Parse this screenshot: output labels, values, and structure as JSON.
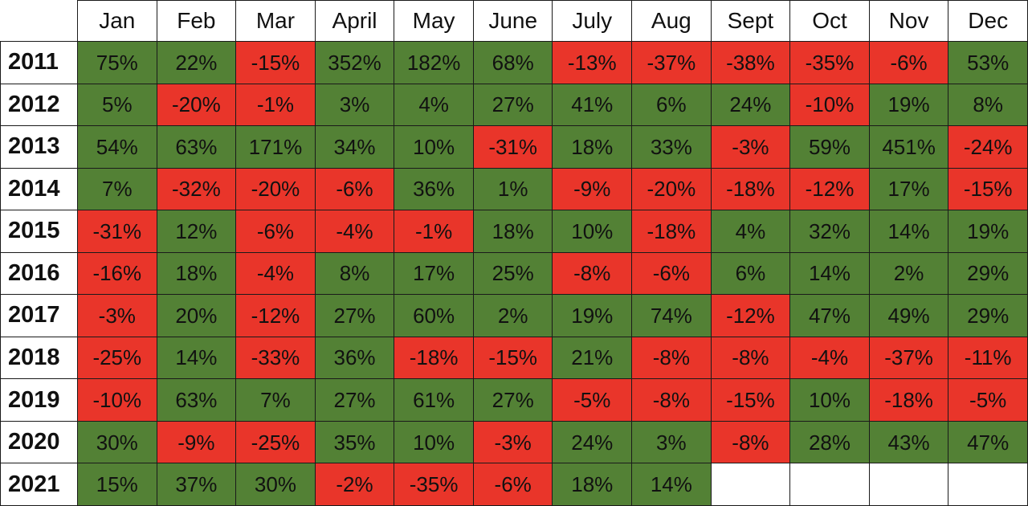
{
  "chart_data": {
    "type": "heatmap",
    "months": [
      "Jan",
      "Feb",
      "Mar",
      "April",
      "May",
      "June",
      "July",
      "Aug",
      "Sept",
      "Oct",
      "Nov",
      "Dec"
    ],
    "years": [
      "2011",
      "2012",
      "2013",
      "2014",
      "2015",
      "2016",
      "2017",
      "2018",
      "2019",
      "2020",
      "2021"
    ],
    "values": [
      [
        "75%",
        "22%",
        "-15%",
        "352%",
        "182%",
        "68%",
        "-13%",
        "-37%",
        "-38%",
        "-35%",
        "-6%",
        "53%"
      ],
      [
        "5%",
        "-20%",
        "-1%",
        "3%",
        "4%",
        "27%",
        "41%",
        "6%",
        "24%",
        "-10%",
        "19%",
        "8%"
      ],
      [
        "54%",
        "63%",
        "171%",
        "34%",
        "10%",
        "-31%",
        "18%",
        "33%",
        "-3%",
        "59%",
        "451%",
        "-24%"
      ],
      [
        "7%",
        "-32%",
        "-20%",
        "-6%",
        "36%",
        "1%",
        "-9%",
        "-20%",
        "-18%",
        "-12%",
        "17%",
        "-15%"
      ],
      [
        "-31%",
        "12%",
        "-6%",
        "-4%",
        "-1%",
        "18%",
        "10%",
        "-18%",
        "4%",
        "32%",
        "14%",
        "19%"
      ],
      [
        "-16%",
        "18%",
        "-4%",
        "8%",
        "17%",
        "25%",
        "-8%",
        "-6%",
        "6%",
        "14%",
        "2%",
        "29%"
      ],
      [
        "-3%",
        "20%",
        "-12%",
        "27%",
        "60%",
        "2%",
        "19%",
        "74%",
        "-12%",
        "47%",
        "49%",
        "29%"
      ],
      [
        "-25%",
        "14%",
        "-33%",
        "36%",
        "-18%",
        "-15%",
        "21%",
        "-8%",
        "-8%",
        "-4%",
        "-37%",
        "-11%"
      ],
      [
        "-10%",
        "63%",
        "7%",
        "27%",
        "61%",
        "27%",
        "-5%",
        "-8%",
        "-15%",
        "10%",
        "-18%",
        "-5%"
      ],
      [
        "30%",
        "-9%",
        "-25%",
        "35%",
        "10%",
        "-3%",
        "24%",
        "3%",
        "-8%",
        "28%",
        "43%",
        "47%"
      ],
      [
        "15%",
        "37%",
        "30%",
        "-2%",
        "-35%",
        "-6%",
        "18%",
        "14%",
        null,
        null,
        null,
        null
      ]
    ],
    "colors": {
      "positive": "#538135",
      "negative": "#e9352a",
      "empty": "#ffffff"
    }
  }
}
